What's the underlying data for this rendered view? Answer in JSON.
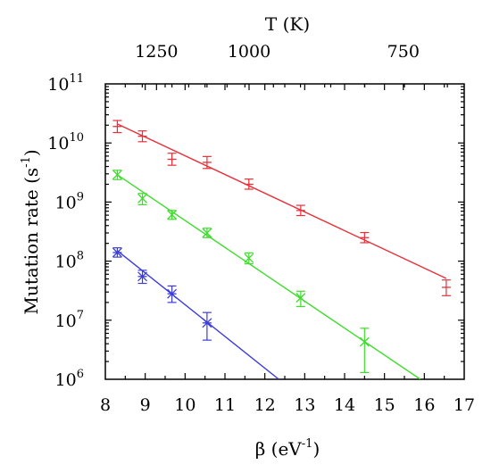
{
  "chart_data": {
    "type": "scatter",
    "xlabel": "β (eV",
    "xlabel_sup": "-1",
    "xlabel_suffix": ")",
    "ylabel": "Mutation rate (s",
    "ylabel_sup": "-1",
    "ylabel_suffix": ")",
    "top_xlabel": "T (K)",
    "xlim": [
      8,
      17
    ],
    "ylim": [
      1000000,
      100000000000
    ],
    "yscale": "log",
    "x_ticks": [
      "8",
      "9",
      "10",
      "11",
      "12",
      "13",
      "14",
      "15",
      "16",
      "17"
    ],
    "y_ticks": [
      {
        "base": "10",
        "exp": "6"
      },
      {
        "base": "10",
        "exp": "7"
      },
      {
        "base": "10",
        "exp": "8"
      },
      {
        "base": "10",
        "exp": "9"
      },
      {
        "base": "10",
        "exp": "10"
      },
      {
        "base": "10",
        "exp": "11"
      }
    ],
    "top_ticks": [
      "1250",
      "1000",
      "750"
    ],
    "grid": false,
    "series": [
      {
        "color": "#e8303a",
        "marker": "plus",
        "fit": {
          "x": [
            8.3,
            16.55
          ],
          "y": [
            21000000000,
            51000000
          ]
        },
        "points": [
          {
            "x": 8.3,
            "y": 19000000000,
            "lo": 15000000000,
            "hi": 24000000000
          },
          {
            "x": 8.93,
            "y": 13000000000,
            "lo": 10500000000,
            "hi": 16000000000
          },
          {
            "x": 9.67,
            "y": 5300000000,
            "lo": 4200000000,
            "hi": 6700000000
          },
          {
            "x": 10.55,
            "y": 4700000000,
            "lo": 3700000000,
            "hi": 5900000000
          },
          {
            "x": 11.6,
            "y": 2000000000,
            "lo": 1650000000,
            "hi": 2450000000
          },
          {
            "x": 12.9,
            "y": 720000000,
            "lo": 590000000,
            "hi": 880000000
          },
          {
            "x": 14.5,
            "y": 250000000,
            "lo": 205000000,
            "hi": 305000000
          },
          {
            "x": 16.55,
            "y": 36000000,
            "lo": 26000000,
            "hi": 48000000
          }
        ]
      },
      {
        "color": "#3ddd2c",
        "marker": "x",
        "fit": {
          "x": [
            8.3,
            15.9
          ],
          "y": [
            2900000000,
            1000000
          ]
        },
        "points": [
          {
            "x": 8.3,
            "y": 2900000000,
            "lo": 2400000000,
            "hi": 3450000000
          },
          {
            "x": 8.93,
            "y": 1150000000,
            "lo": 900000000,
            "hi": 1400000000
          },
          {
            "x": 9.67,
            "y": 610000000,
            "lo": 510000000,
            "hi": 720000000
          },
          {
            "x": 10.55,
            "y": 300000000,
            "lo": 250000000,
            "hi": 360000000
          },
          {
            "x": 11.6,
            "y": 112000000,
            "lo": 90000000,
            "hi": 138000000
          },
          {
            "x": 12.9,
            "y": 24000000,
            "lo": 17000000,
            "hi": 31000000
          },
          {
            "x": 14.5,
            "y": 4300000,
            "lo": 1300000,
            "hi": 7300000
          }
        ]
      },
      {
        "color": "#3c3cdc",
        "marker": "asterisk",
        "fit": {
          "x": [
            8.3,
            12.35
          ],
          "y": [
            150000000,
            1000000
          ]
        },
        "points": [
          {
            "x": 8.3,
            "y": 140000000,
            "lo": 117000000,
            "hi": 168000000
          },
          {
            "x": 8.93,
            "y": 55000000,
            "lo": 42000000,
            "hi": 70000000
          },
          {
            "x": 9.67,
            "y": 28000000,
            "lo": 20000000,
            "hi": 38000000
          },
          {
            "x": 10.55,
            "y": 9000000,
            "lo": 4600000,
            "hi": 13500000
          }
        ]
      }
    ]
  }
}
